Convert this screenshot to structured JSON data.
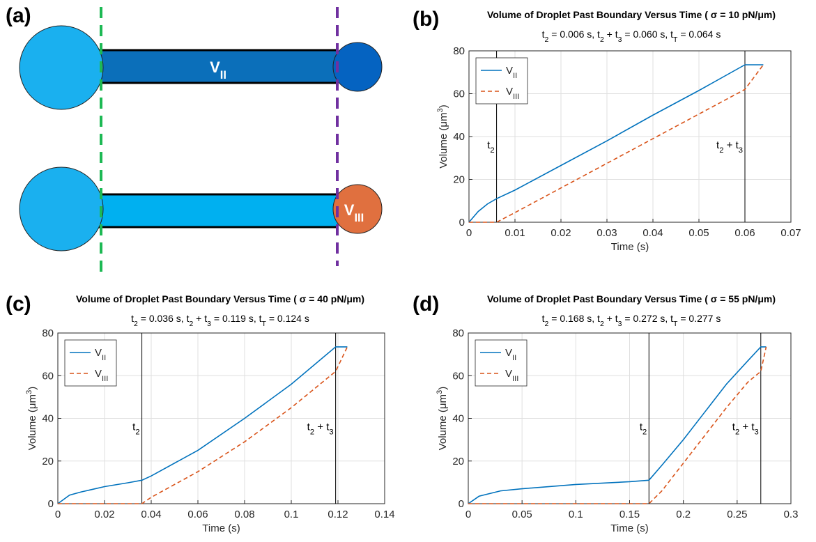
{
  "diagram": {
    "label": "(a)",
    "labels": [
      "VII",
      "VIII"
    ]
  },
  "chart_data": [
    {
      "type": "line",
      "panel": "(b)",
      "title": "Volume of Droplet Past Boundary Versus Time ( σ = 10 pN/μm)",
      "subtitle": "t2 = 0.006 s, t2 + t3 = 0.060 s, tT = 0.064 s",
      "xlabel": "Time (s)",
      "ylabel": "Volume (μm3)",
      "x": [
        0,
        0.002,
        0.004,
        0.006,
        0.01,
        0.02,
        0.03,
        0.04,
        0.05,
        0.06,
        0.064
      ],
      "series": [
        {
          "name": "VII",
          "color": "#0072bd",
          "dashed": false,
          "values": [
            0,
            5,
            8.5,
            11,
            15,
            26.5,
            38,
            50,
            61.5,
            73.5,
            73.5
          ]
        },
        {
          "name": "VIII",
          "color": "#d95319",
          "dashed": true,
          "values": [
            0,
            0,
            0,
            0,
            4.5,
            16,
            27.5,
            39,
            50.5,
            62,
            73.5
          ]
        }
      ],
      "vlines": [
        {
          "x": 0.006,
          "label": "t2"
        },
        {
          "x": 0.06,
          "label": "t2 + t3"
        }
      ],
      "xlim": [
        0,
        0.07
      ],
      "xticks": [
        0,
        0.01,
        0.02,
        0.03,
        0.04,
        0.05,
        0.06,
        0.07
      ],
      "ylim": [
        0,
        80
      ],
      "yticks": [
        0,
        20,
        40,
        60,
        80
      ],
      "grid": true,
      "legend": "upper-left"
    },
    {
      "type": "line",
      "panel": "(c)",
      "title": "Volume of Droplet Past Boundary Versus Time ( σ = 40 pN/μm)",
      "subtitle": "t2 = 0.036 s, t2 + t3 = 0.119 s, tT = 0.124 s",
      "xlabel": "Time (s)",
      "ylabel": "Volume (μm3)",
      "x": [
        0,
        0.005,
        0.01,
        0.02,
        0.03,
        0.036,
        0.04,
        0.06,
        0.08,
        0.1,
        0.119,
        0.124
      ],
      "series": [
        {
          "name": "VII",
          "color": "#0072bd",
          "dashed": false,
          "values": [
            0,
            4,
            5.5,
            8,
            9.8,
            11,
            13,
            25,
            40,
            56,
            73.5,
            73.5
          ]
        },
        {
          "name": "VIII",
          "color": "#d95319",
          "dashed": true,
          "values": [
            0,
            0,
            0,
            0,
            0,
            0,
            3,
            15,
            29,
            45,
            62,
            73.5
          ]
        }
      ],
      "vlines": [
        {
          "x": 0.036,
          "label": "t2"
        },
        {
          "x": 0.119,
          "label": "t2 + t3"
        }
      ],
      "xlim": [
        0,
        0.14
      ],
      "xticks": [
        0,
        0.02,
        0.04,
        0.06,
        0.08,
        0.1,
        0.12,
        0.14
      ],
      "ylim": [
        0,
        80
      ],
      "yticks": [
        0,
        20,
        40,
        60,
        80
      ],
      "grid": true,
      "legend": "upper-left"
    },
    {
      "type": "line",
      "panel": "(d)",
      "title": "Volume of Droplet Past Boundary Versus Time ( σ = 55 pN/μm)",
      "subtitle": "t2 = 0.168 s, t2 + t3 = 0.272 s, tT = 0.277 s",
      "xlabel": "Time (s)",
      "ylabel": "Volume (μm3)",
      "x": [
        0,
        0.01,
        0.03,
        0.05,
        0.1,
        0.15,
        0.168,
        0.18,
        0.2,
        0.22,
        0.24,
        0.26,
        0.272,
        0.277
      ],
      "series": [
        {
          "name": "VII",
          "color": "#0072bd",
          "dashed": false,
          "values": [
            0,
            3.5,
            6,
            7,
            9,
            10.3,
            11,
            18,
            30,
            43,
            56,
            67,
            73.5,
            73.5
          ]
        },
        {
          "name": "VIII",
          "color": "#d95319",
          "dashed": true,
          "values": [
            0,
            0,
            0,
            0,
            0,
            0,
            0,
            6,
            19,
            32,
            45,
            57,
            62,
            73.5
          ]
        }
      ],
      "vlines": [
        {
          "x": 0.168,
          "label": "t2"
        },
        {
          "x": 0.272,
          "label": "t2 + t3"
        }
      ],
      "xlim": [
        0,
        0.3
      ],
      "xticks": [
        0,
        0.05,
        0.1,
        0.15,
        0.2,
        0.25,
        0.3
      ],
      "ylim": [
        0,
        80
      ],
      "yticks": [
        0,
        20,
        40,
        60,
        80
      ],
      "grid": true,
      "legend": "upper-left"
    }
  ]
}
